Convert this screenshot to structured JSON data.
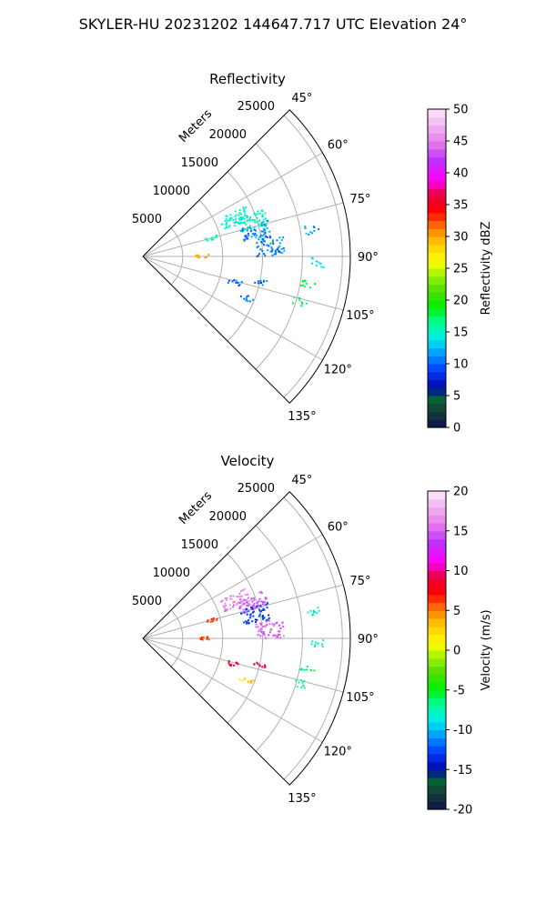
{
  "figure_title": "SKYLER-HU  20231202  144647.717 UTC Elevation 24°",
  "chart_data": [
    {
      "type": "polar-sector",
      "title": "Reflectivity",
      "radial_label": "Meters",
      "radial_ticks": [
        5000,
        10000,
        15000,
        20000,
        25000
      ],
      "radial_range": [
        0,
        26000
      ],
      "angle_ticks": [
        "45°",
        "60°",
        "75°",
        "90°",
        "105°",
        "120°",
        "135°"
      ],
      "angle_range_deg": [
        45,
        135
      ],
      "grid": true,
      "colorbar": {
        "label": "Reflectivity dBZ",
        "min": 0,
        "max": 50,
        "ticks": [
          0,
          5,
          10,
          15,
          20,
          25,
          30,
          35,
          40,
          45,
          50
        ]
      },
      "echo_clusters": [
        {
          "azimuth_deg": 68,
          "range_m": 12500,
          "value": 15
        },
        {
          "azimuth_deg": 72,
          "range_m": 14500,
          "value": 15
        },
        {
          "azimuth_deg": 78,
          "range_m": 14500,
          "value": 11
        },
        {
          "azimuth_deg": 86,
          "range_m": 16000,
          "value": 11
        },
        {
          "azimuth_deg": 75,
          "range_m": 9000,
          "value": 16
        },
        {
          "azimuth_deg": 90,
          "range_m": 7500,
          "value": 30
        },
        {
          "azimuth_deg": 102,
          "range_m": 15000,
          "value": 10
        },
        {
          "azimuth_deg": 106,
          "range_m": 12000,
          "value": 10
        },
        {
          "azimuth_deg": 100,
          "range_m": 21000,
          "value": 18
        },
        {
          "azimuth_deg": 106,
          "range_m": 20500,
          "value": 18
        },
        {
          "azimuth_deg": 112,
          "range_m": 14000,
          "value": 11
        },
        {
          "azimuth_deg": 92,
          "range_m": 22000,
          "value": 14
        },
        {
          "azimuth_deg": 81,
          "range_m": 21500,
          "value": 12
        }
      ]
    },
    {
      "type": "polar-sector",
      "title": "Velocity",
      "radial_label": "Meters",
      "radial_ticks": [
        5000,
        10000,
        15000,
        20000,
        25000
      ],
      "radial_range": [
        0,
        26000
      ],
      "angle_ticks": [
        "45°",
        "60°",
        "75°",
        "90°",
        "105°",
        "120°",
        "135°"
      ],
      "angle_range_deg": [
        45,
        135
      ],
      "grid": true,
      "colorbar": {
        "label": "Velocity (m/s)",
        "min": -20,
        "max": 20,
        "ticks": [
          -20,
          -15,
          -10,
          -5,
          0,
          5,
          10,
          15,
          20
        ]
      },
      "echo_clusters": [
        {
          "azimuth_deg": 68,
          "range_m": 12500,
          "value": 16
        },
        {
          "azimuth_deg": 72,
          "range_m": 14500,
          "value": 15
        },
        {
          "azimuth_deg": 78,
          "range_m": 14500,
          "value": -13
        },
        {
          "azimuth_deg": 86,
          "range_m": 16000,
          "value": 15
        },
        {
          "azimuth_deg": 75,
          "range_m": 9000,
          "value": 6
        },
        {
          "azimuth_deg": 90,
          "range_m": 7500,
          "value": 6
        },
        {
          "azimuth_deg": 102,
          "range_m": 15000,
          "value": 9
        },
        {
          "azimuth_deg": 106,
          "range_m": 12000,
          "value": 8
        },
        {
          "azimuth_deg": 100,
          "range_m": 21000,
          "value": -7
        },
        {
          "azimuth_deg": 106,
          "range_m": 20500,
          "value": -7
        },
        {
          "azimuth_deg": 112,
          "range_m": 14000,
          "value": 3
        },
        {
          "azimuth_deg": 92,
          "range_m": 22000,
          "value": -8
        },
        {
          "azimuth_deg": 81,
          "range_m": 21500,
          "value": -8
        }
      ]
    }
  ]
}
